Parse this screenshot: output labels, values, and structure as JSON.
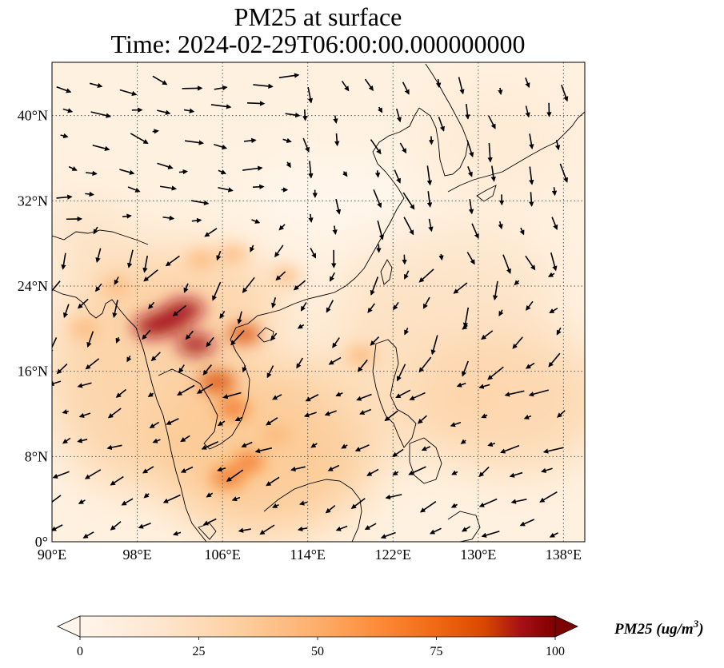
{
  "title": {
    "line1": "PM25 at surface",
    "line2": "Time: 2024-02-29T06:00:00.000000000"
  },
  "map": {
    "lon_range": [
      90,
      140
    ],
    "lat_range": [
      0,
      45
    ],
    "lon_ticks": [
      {
        "value": 90,
        "label": "90°E"
      },
      {
        "value": 98,
        "label": "98°E"
      },
      {
        "value": 106,
        "label": "106°E"
      },
      {
        "value": 114,
        "label": "114°E"
      },
      {
        "value": 122,
        "label": "122°E"
      },
      {
        "value": 130,
        "label": "130°E"
      },
      {
        "value": 138,
        "label": "138°E"
      }
    ],
    "lat_ticks": [
      {
        "value": 0,
        "label": "0°"
      },
      {
        "value": 8,
        "label": "8°N"
      },
      {
        "value": 16,
        "label": "16°N"
      },
      {
        "value": 24,
        "label": "24°N"
      },
      {
        "value": 32,
        "label": "32°N"
      },
      {
        "value": 40,
        "label": "40°N"
      }
    ],
    "gridlines": true,
    "colormap": [
      "#fff5eb",
      "#fdd9b0",
      "#fdae6b",
      "#f16913",
      "#d94801",
      "#a50f15",
      "#7f0000"
    ],
    "hotspots": [
      {
        "lon": 99.5,
        "lat": 20.2,
        "value": 85
      },
      {
        "lon": 101,
        "lat": 20.8,
        "value": 90
      },
      {
        "lon": 102.5,
        "lat": 21.8,
        "value": 80
      },
      {
        "lon": 103.5,
        "lat": 18.5,
        "value": 75
      },
      {
        "lon": 105.5,
        "lat": 15.0,
        "value": 70
      },
      {
        "lon": 107,
        "lat": 12.5,
        "value": 50
      },
      {
        "lon": 108,
        "lat": 19.5,
        "value": 60
      },
      {
        "lon": 106.5,
        "lat": 6.0,
        "value": 55
      },
      {
        "lon": 108.5,
        "lat": 7.5,
        "value": 45
      },
      {
        "lon": 104,
        "lat": 26.5,
        "value": 40
      },
      {
        "lon": 107,
        "lat": 27.0,
        "value": 35
      },
      {
        "lon": 112,
        "lat": 25.0,
        "value": 30
      },
      {
        "lon": 93,
        "lat": 20.0,
        "value": 35
      },
      {
        "lon": 119,
        "lat": 17.5,
        "value": 40
      },
      {
        "lon": 96,
        "lat": 24.0,
        "value": 30
      },
      {
        "lon": 111,
        "lat": 10.0,
        "value": 35
      }
    ]
  },
  "colorbar": {
    "min": 0,
    "max": 100,
    "ticks": [
      {
        "value": 0,
        "label": "0"
      },
      {
        "value": 25,
        "label": "25"
      },
      {
        "value": 50,
        "label": "50"
      },
      {
        "value": 75,
        "label": "75"
      },
      {
        "value": 100,
        "label": "100"
      }
    ],
    "label": "PM25 (ug/m",
    "label_sup": "3",
    "label_close": ")",
    "extend": "both"
  }
}
